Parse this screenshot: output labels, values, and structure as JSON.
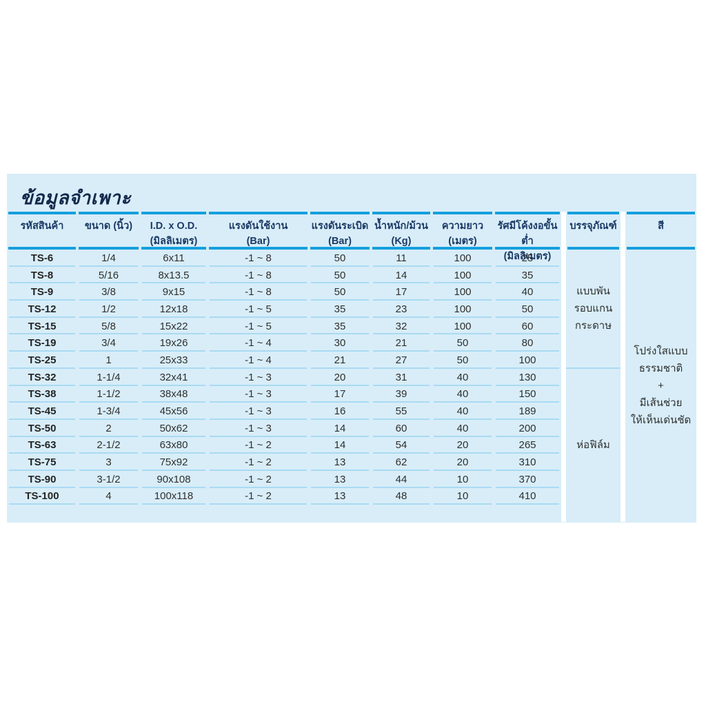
{
  "title": "ข้อมูลจำเพาะ",
  "colors": {
    "panel_background": "#d8edf8",
    "header_line_blue": "#149fdd",
    "row_line_blue": "#a9daf3",
    "header_text_navy": "#1c3a66",
    "body_text": "#2f2f2f",
    "title_text_navy": "#13294b"
  },
  "table": {
    "headers": [
      {
        "line1": "รหัสสินค้า",
        "line2": ""
      },
      {
        "line1": "ขนาด (นิ้ว)",
        "line2": ""
      },
      {
        "line1": "I.D. x O.D.",
        "line2": "(มิลลิเมตร)"
      },
      {
        "line1": "แรงดันใช้งาน",
        "line2": "(Bar)"
      },
      {
        "line1": "แรงดันระเบิด",
        "line2": "(Bar)"
      },
      {
        "line1": "น้ำหนัก/ม้วน",
        "line2": "(Kg)"
      },
      {
        "line1": "ความยาว",
        "line2": "(เมตร)"
      },
      {
        "line1": "รัศมีโค้งงอขั้นต่ำ",
        "line2": "(มิลลิเมตร)"
      },
      {
        "line1": "บรรจุภัณฑ์",
        "line2": ""
      },
      {
        "line1": "สี",
        "line2": ""
      }
    ],
    "rows": [
      [
        "TS-6",
        "1/4",
        "6x11",
        "-1 ~ 8",
        "50",
        "11",
        "100",
        "25"
      ],
      [
        "TS-8",
        "5/16",
        "8x13.5",
        "-1 ~ 8",
        "50",
        "14",
        "100",
        "35"
      ],
      [
        "TS-9",
        "3/8",
        "9x15",
        "-1 ~ 8",
        "50",
        "17",
        "100",
        "40"
      ],
      [
        "TS-12",
        "1/2",
        "12x18",
        "-1 ~ 5",
        "35",
        "23",
        "100",
        "50"
      ],
      [
        "TS-15",
        "5/8",
        "15x22",
        "-1 ~ 5",
        "35",
        "32",
        "100",
        "60"
      ],
      [
        "TS-19",
        "3/4",
        "19x26",
        "-1 ~ 4",
        "30",
        "21",
        "50",
        "80"
      ],
      [
        "TS-25",
        "1",
        "25x33",
        "-1 ~ 4",
        "21",
        "27",
        "50",
        "100"
      ],
      [
        "TS-32",
        "1-1/4",
        "32x41",
        "-1 ~ 3",
        "20",
        "31",
        "40",
        "130"
      ],
      [
        "TS-38",
        "1-1/2",
        "38x48",
        "-1 ~ 3",
        "17",
        "39",
        "40",
        "150"
      ],
      [
        "TS-45",
        "1-3/4",
        "45x56",
        "-1 ~ 3",
        "16",
        "55",
        "40",
        "189"
      ],
      [
        "TS-50",
        "2",
        "50x62",
        "-1 ~ 3",
        "14",
        "60",
        "40",
        "200"
      ],
      [
        "TS-63",
        "2-1/2",
        "63x80",
        "-1 ~ 2",
        "14",
        "54",
        "20",
        "265"
      ],
      [
        "TS-75",
        "3",
        "75x92",
        "-1 ~ 2",
        "13",
        "62",
        "20",
        "310"
      ],
      [
        "TS-90",
        "3-1/2",
        "90x108",
        "-1 ~ 2",
        "13",
        "44",
        "10",
        "370"
      ],
      [
        "TS-100",
        "4",
        "100x118",
        "-1 ~ 2",
        "13",
        "48",
        "10",
        "410"
      ]
    ],
    "empty_trailing_rows": 1,
    "packaging_groups": [
      {
        "lines": [
          "แบบพัน",
          "รอบแกน",
          "กระดาษ"
        ],
        "row_span": 7
      },
      {
        "lines": [
          "ห่อฟิล์ม"
        ],
        "row_span": 9
      }
    ],
    "color_note_lines": [
      "โปร่งใสแบบ",
      "ธรรมชาติ",
      "+",
      "มีเส้นช่วย",
      "ให้เห็นเด่นชัด"
    ]
  }
}
